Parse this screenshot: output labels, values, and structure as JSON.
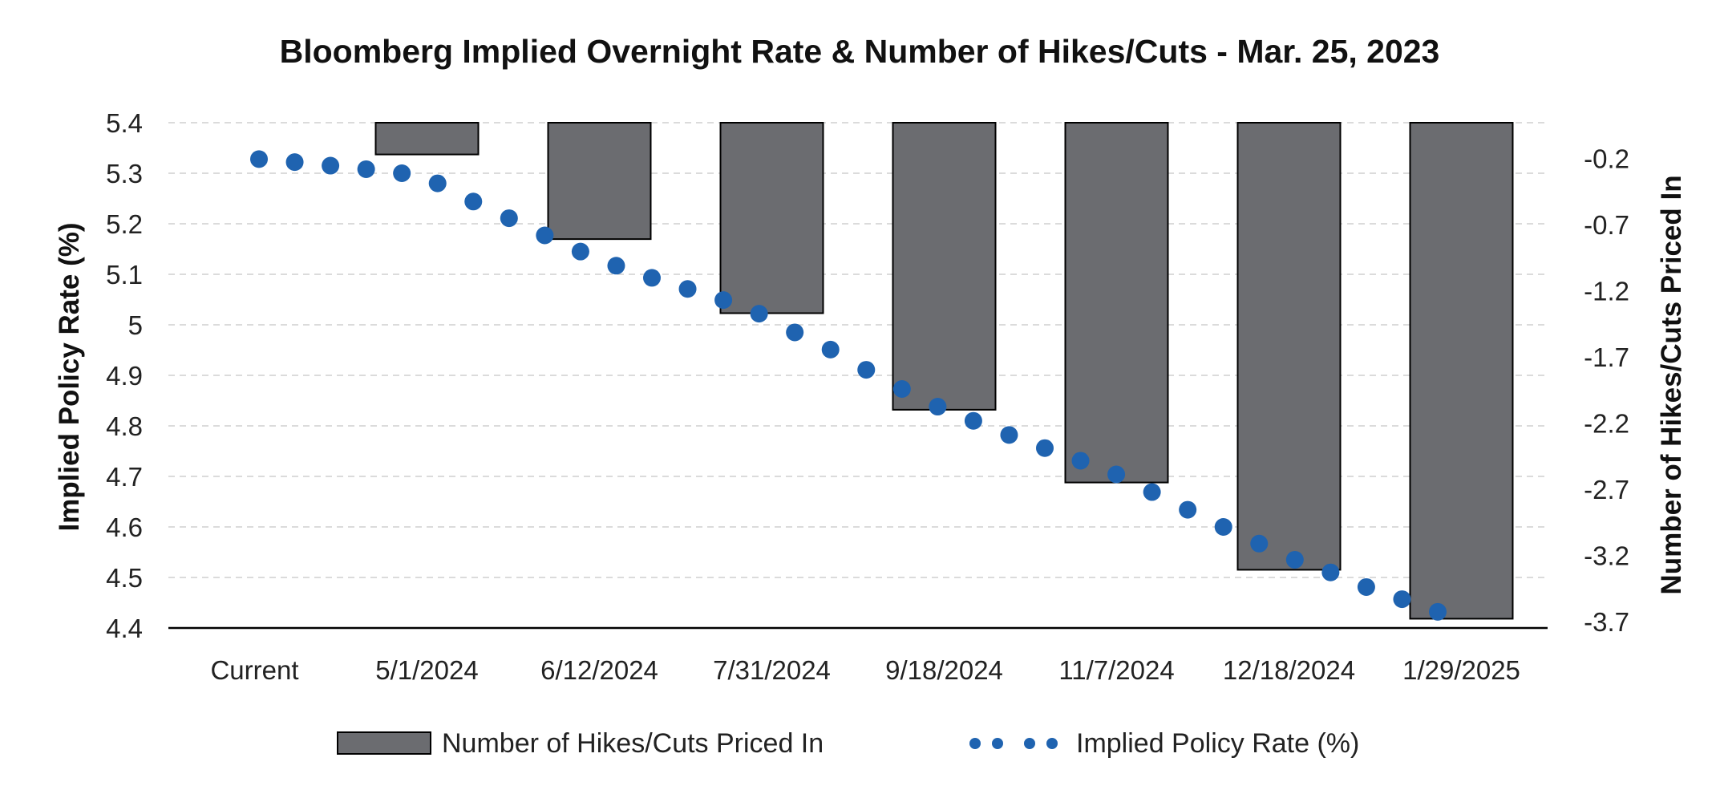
{
  "chart_data": {
    "type": "bar+scatter",
    "title": "Bloomberg Implied Overnight Rate & Number of Hikes/Cuts - Mar. 25, 2023",
    "y_left_label": "Implied Policy Rate (%)",
    "y_right_label": "Number of Hikes/Cuts Priced In",
    "y_left_ticks": [
      "5.4",
      "5.3",
      "5.2",
      "5.1",
      "5",
      "4.9",
      "4.8",
      "4.7",
      "4.6",
      "4.5",
      "4.4"
    ],
    "y_left_range": [
      4.4,
      5.4
    ],
    "y_right_ticks": [
      "-0.2",
      "-0.7",
      "-1.2",
      "-1.7",
      "-2.2",
      "-2.7",
      "-3.2",
      "-3.7"
    ],
    "y_right_range": [
      -3.75,
      0.07
    ],
    "categories": [
      "Current",
      "5/1/2024",
      "6/12/2024",
      "7/31/2024",
      "9/18/2024",
      "11/7/2024",
      "12/18/2024",
      "1/29/2025"
    ],
    "bars": {
      "name": "Number of Hikes/Cuts Priced In",
      "color": "#6b6c70",
      "values": [
        null,
        -0.17,
        -0.81,
        -1.37,
        -2.1,
        -2.65,
        -3.31,
        -3.68
      ]
    },
    "dots": {
      "name": "Implied Policy Rate (%)",
      "color": "#1f63b0",
      "values": [
        5.328,
        5.322,
        5.315,
        5.308,
        5.3,
        5.28,
        5.244,
        5.211,
        5.177,
        5.145,
        5.117,
        5.093,
        5.071,
        5.049,
        5.022,
        4.985,
        4.951,
        4.911,
        4.873,
        4.838,
        4.81,
        4.782,
        4.756,
        4.731,
        4.704,
        4.669,
        4.634,
        4.6,
        4.567,
        4.535,
        4.51,
        4.481,
        4.457,
        4.432
      ]
    },
    "grid": true,
    "legend_position": "bottom"
  },
  "legend": {
    "bar_label": "Number of Hikes/Cuts Priced In",
    "dot_label": "Implied Policy Rate (%)"
  }
}
